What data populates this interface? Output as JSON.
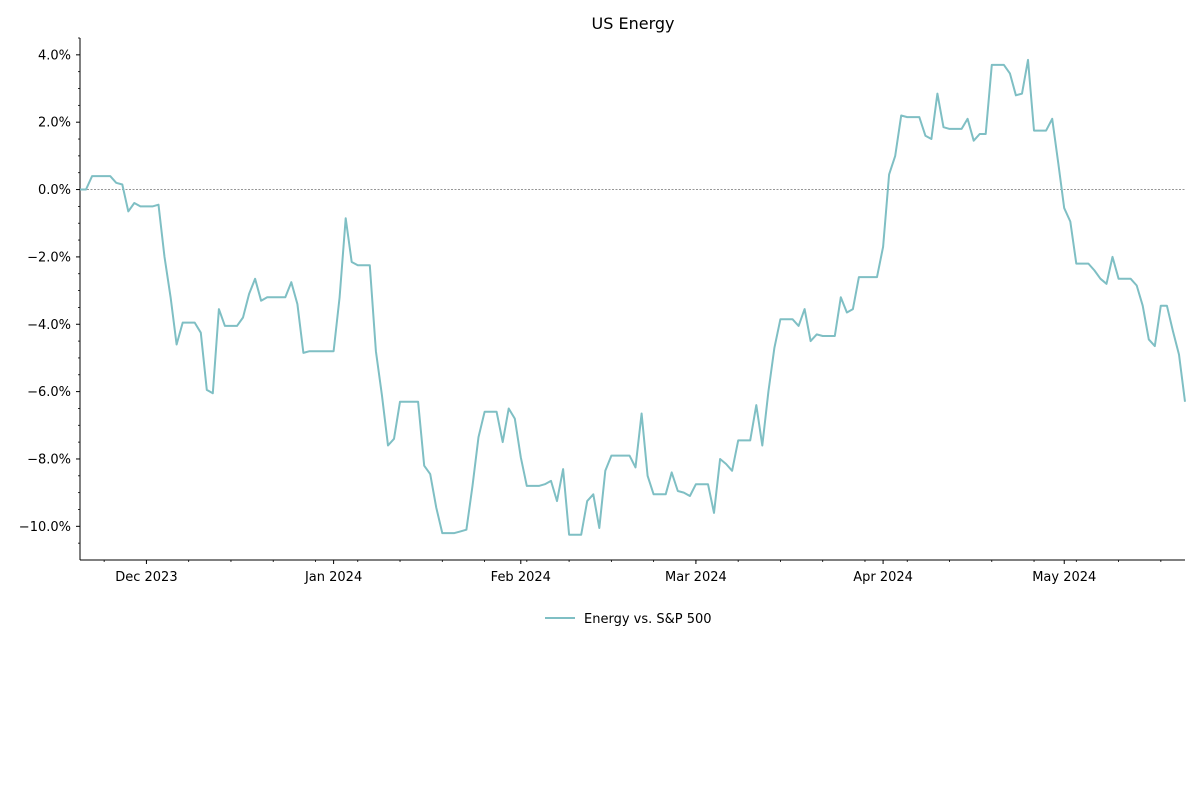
{
  "chart_data": {
    "type": "line",
    "title": "US Energy",
    "xlabel": "",
    "ylabel": "",
    "ylim": [
      -11.0,
      4.5
    ],
    "xlim": [
      "2023-11-20",
      "2024-05-20"
    ],
    "y_ticks": [
      4,
      2,
      0,
      -2,
      -4,
      -6,
      -8,
      -10
    ],
    "y_tick_labels": [
      "4.0%",
      "2.0%",
      "0.0%",
      "−2.0%",
      "−4.0%",
      "−6.0%",
      "−8.0%",
      "−10.0%"
    ],
    "x_ticks": [
      "2023-12-01",
      "2024-01-01",
      "2024-02-01",
      "2024-03-01",
      "2024-04-01",
      "2024-05-01"
    ],
    "x_tick_labels": [
      "Dec 2023",
      "Jan 2024",
      "Feb 2024",
      "Mar 2024",
      "Apr 2024",
      "May 2024"
    ],
    "reference_line": 0,
    "grid": false,
    "legend_position": "bottom-center",
    "series": [
      {
        "name": "Energy vs. S&P 500",
        "color": "#7fbfc4",
        "points": [
          [
            "2023-11-20",
            0.0
          ],
          [
            "2023-11-21",
            0.0
          ],
          [
            "2023-11-22",
            0.4
          ],
          [
            "2023-11-24",
            0.4
          ],
          [
            "2023-11-25",
            0.4
          ],
          [
            "2023-11-26",
            0.2
          ],
          [
            "2023-11-27",
            0.15
          ],
          [
            "2023-11-28",
            -0.65
          ],
          [
            "2023-11-29",
            -0.4
          ],
          [
            "2023-11-30",
            -0.5
          ],
          [
            "2023-12-01",
            -0.5
          ],
          [
            "2023-12-02",
            -0.5
          ],
          [
            "2023-12-03",
            -0.45
          ],
          [
            "2023-12-04",
            -2.0
          ],
          [
            "2023-12-05",
            -3.2
          ],
          [
            "2023-12-06",
            -4.6
          ],
          [
            "2023-12-07",
            -3.95
          ],
          [
            "2023-12-09",
            -3.95
          ],
          [
            "2023-12-10",
            -4.25
          ],
          [
            "2023-12-11",
            -5.95
          ],
          [
            "2023-12-12",
            -6.05
          ],
          [
            "2023-12-13",
            -3.55
          ],
          [
            "2023-12-14",
            -4.05
          ],
          [
            "2023-12-16",
            -4.05
          ],
          [
            "2023-12-17",
            -3.8
          ],
          [
            "2023-12-18",
            -3.1
          ],
          [
            "2023-12-19",
            -2.65
          ],
          [
            "2023-12-20",
            -3.3
          ],
          [
            "2023-12-21",
            -3.2
          ],
          [
            "2023-12-24",
            -3.2
          ],
          [
            "2023-12-25",
            -2.75
          ],
          [
            "2023-12-26",
            -3.4
          ],
          [
            "2023-12-27",
            -4.85
          ],
          [
            "2023-12-28",
            -4.8
          ],
          [
            "2024-01-01",
            -4.8
          ],
          [
            "2024-01-02",
            -3.2
          ],
          [
            "2024-01-03",
            -0.85
          ],
          [
            "2024-01-04",
            -2.15
          ],
          [
            "2024-01-05",
            -2.25
          ],
          [
            "2024-01-07",
            -2.25
          ],
          [
            "2024-01-08",
            -4.8
          ],
          [
            "2024-01-09",
            -6.1
          ],
          [
            "2024-01-10",
            -7.6
          ],
          [
            "2024-01-11",
            -7.4
          ],
          [
            "2024-01-12",
            -6.3
          ],
          [
            "2024-01-15",
            -6.3
          ],
          [
            "2024-01-16",
            -8.2
          ],
          [
            "2024-01-17",
            -8.45
          ],
          [
            "2024-01-18",
            -9.45
          ],
          [
            "2024-01-19",
            -10.2
          ],
          [
            "2024-01-21",
            -10.2
          ],
          [
            "2024-01-22",
            -10.15
          ],
          [
            "2024-01-23",
            -10.1
          ],
          [
            "2024-01-24",
            -8.8
          ],
          [
            "2024-01-25",
            -7.35
          ],
          [
            "2024-01-26",
            -6.6
          ],
          [
            "2024-01-28",
            -6.6
          ],
          [
            "2024-01-29",
            -7.5
          ],
          [
            "2024-01-30",
            -6.5
          ],
          [
            "2024-01-31",
            -6.8
          ],
          [
            "2024-02-01",
            -7.95
          ],
          [
            "2024-02-02",
            -8.8
          ],
          [
            "2024-02-04",
            -8.8
          ],
          [
            "2024-02-05",
            -8.75
          ],
          [
            "2024-02-06",
            -8.65
          ],
          [
            "2024-02-07",
            -9.25
          ],
          [
            "2024-02-08",
            -8.3
          ],
          [
            "2024-02-09",
            -10.25
          ],
          [
            "2024-02-11",
            -10.25
          ],
          [
            "2024-02-12",
            -9.25
          ],
          [
            "2024-02-13",
            -9.05
          ],
          [
            "2024-02-14",
            -10.05
          ],
          [
            "2024-02-15",
            -8.35
          ],
          [
            "2024-02-16",
            -7.9
          ],
          [
            "2024-02-19",
            -7.9
          ],
          [
            "2024-02-20",
            -8.25
          ],
          [
            "2024-02-21",
            -6.65
          ],
          [
            "2024-02-22",
            -8.5
          ],
          [
            "2024-02-23",
            -9.05
          ],
          [
            "2024-02-25",
            -9.05
          ],
          [
            "2024-02-26",
            -8.4
          ],
          [
            "2024-02-27",
            -8.95
          ],
          [
            "2024-02-28",
            -9.0
          ],
          [
            "2024-02-29",
            -9.1
          ],
          [
            "2024-03-01",
            -8.75
          ],
          [
            "2024-03-03",
            -8.75
          ],
          [
            "2024-03-04",
            -9.6
          ],
          [
            "2024-03-05",
            -8.0
          ],
          [
            "2024-03-06",
            -8.15
          ],
          [
            "2024-03-07",
            -8.35
          ],
          [
            "2024-03-08",
            -7.45
          ],
          [
            "2024-03-10",
            -7.45
          ],
          [
            "2024-03-11",
            -6.4
          ],
          [
            "2024-03-12",
            -7.6
          ],
          [
            "2024-03-13",
            -6.0
          ],
          [
            "2024-03-14",
            -4.7
          ],
          [
            "2024-03-15",
            -3.85
          ],
          [
            "2024-03-17",
            -3.85
          ],
          [
            "2024-03-18",
            -4.05
          ],
          [
            "2024-03-19",
            -3.55
          ],
          [
            "2024-03-20",
            -4.5
          ],
          [
            "2024-03-21",
            -4.3
          ],
          [
            "2024-03-22",
            -4.35
          ],
          [
            "2024-03-24",
            -4.35
          ],
          [
            "2024-03-25",
            -3.2
          ],
          [
            "2024-03-26",
            -3.65
          ],
          [
            "2024-03-27",
            -3.55
          ],
          [
            "2024-03-28",
            -2.6
          ],
          [
            "2024-03-31",
            -2.6
          ],
          [
            "2024-04-01",
            -1.7
          ],
          [
            "2024-04-02",
            0.45
          ],
          [
            "2024-04-03",
            1.0
          ],
          [
            "2024-04-04",
            2.2
          ],
          [
            "2024-04-05",
            2.15
          ],
          [
            "2024-04-07",
            2.15
          ],
          [
            "2024-04-08",
            1.6
          ],
          [
            "2024-04-09",
            1.5
          ],
          [
            "2024-04-10",
            2.85
          ],
          [
            "2024-04-11",
            1.85
          ],
          [
            "2024-04-12",
            1.8
          ],
          [
            "2024-04-14",
            1.8
          ],
          [
            "2024-04-15",
            2.1
          ],
          [
            "2024-04-16",
            1.45
          ],
          [
            "2024-04-17",
            1.65
          ],
          [
            "2024-04-18",
            1.65
          ],
          [
            "2024-04-19",
            3.7
          ],
          [
            "2024-04-21",
            3.7
          ],
          [
            "2024-04-22",
            3.45
          ],
          [
            "2024-04-23",
            2.8
          ],
          [
            "2024-04-24",
            2.85
          ],
          [
            "2024-04-25",
            3.85
          ],
          [
            "2024-04-26",
            1.75
          ],
          [
            "2024-04-28",
            1.75
          ],
          [
            "2024-04-29",
            2.1
          ],
          [
            "2024-04-30",
            0.8
          ],
          [
            "2024-05-01",
            -0.55
          ],
          [
            "2024-05-02",
            -0.95
          ],
          [
            "2024-05-03",
            -2.2
          ],
          [
            "2024-05-05",
            -2.2
          ],
          [
            "2024-05-06",
            -2.4
          ],
          [
            "2024-05-07",
            -2.65
          ],
          [
            "2024-05-08",
            -2.8
          ],
          [
            "2024-05-09",
            -2.0
          ],
          [
            "2024-05-10",
            -2.65
          ],
          [
            "2024-05-12",
            -2.65
          ],
          [
            "2024-05-13",
            -2.85
          ],
          [
            "2024-05-14",
            -3.45
          ],
          [
            "2024-05-15",
            -4.45
          ],
          [
            "2024-05-16",
            -4.65
          ],
          [
            "2024-05-17",
            -3.45
          ],
          [
            "2024-05-18",
            -3.45
          ],
          [
            "2024-05-19",
            -4.2
          ],
          [
            "2024-05-20",
            -4.9
          ],
          [
            "2024-05-21",
            -6.3
          ]
        ]
      }
    ]
  }
}
